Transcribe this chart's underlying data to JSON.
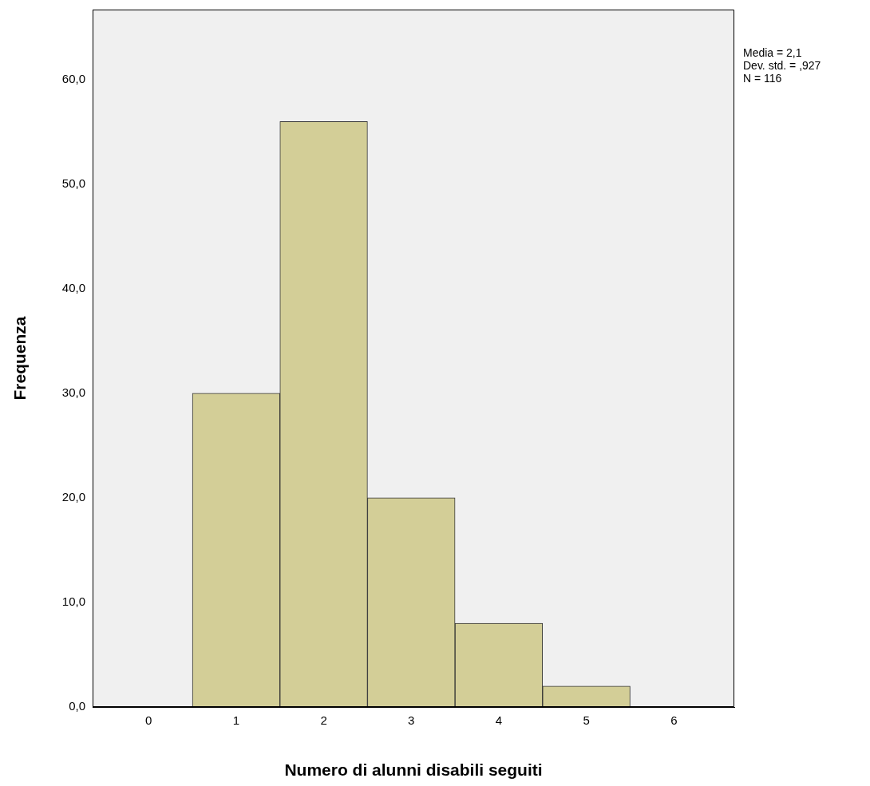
{
  "chart_data": {
    "type": "histogram",
    "xlabel": "Numero di alunni disabili seguiti",
    "ylabel": "Frequenza",
    "bins": [
      0.5,
      1.5,
      2.5,
      3.5,
      4.5,
      5.5
    ],
    "values": [
      30,
      56,
      20,
      8,
      2
    ],
    "color": "#d3ce97",
    "xlim": [
      -0.64,
      6.69
    ],
    "xticks": [
      0,
      1,
      2,
      3,
      4,
      5,
      6
    ],
    "ylim": [
      0,
      66.7
    ],
    "yticks": [
      {
        "value": 0,
        "label": "0,0"
      },
      {
        "value": 10,
        "label": "10,0"
      },
      {
        "value": 20,
        "label": "20,0"
      },
      {
        "value": 30,
        "label": "30,0"
      },
      {
        "value": 40,
        "label": "40,0"
      },
      {
        "value": 50,
        "label": "50,0"
      },
      {
        "value": 60,
        "label": "60,0"
      }
    ],
    "grid": false,
    "annotations": [
      "Media = 2,1",
      "Dev. std. = ,927",
      "N = 116"
    ]
  }
}
